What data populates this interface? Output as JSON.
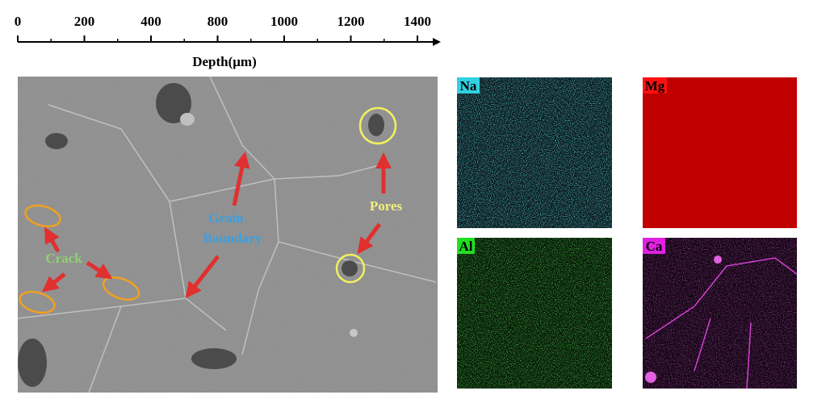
{
  "depth_axis": {
    "label": "Depth(μm)",
    "tick_labels": [
      "0",
      "200",
      "400",
      "800",
      "1000",
      "1200",
      "1400"
    ]
  },
  "sem_image": {
    "crack": "Crack",
    "grain_boundary": [
      "Grain",
      "Boundary"
    ],
    "pores": "Pores"
  },
  "eds_maps": [
    {
      "element": "Na"
    },
    {
      "element": "Mg"
    },
    {
      "element": "Al"
    },
    {
      "element": "Ca"
    }
  ]
}
